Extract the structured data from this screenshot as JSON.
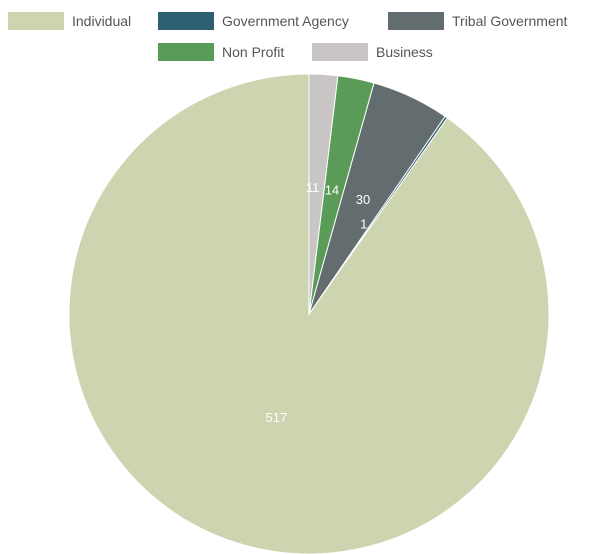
{
  "chart_data": {
    "type": "pie",
    "title": "",
    "legend_position": "top",
    "categories": [
      "Individual",
      "Government Agency",
      "Tribal Government",
      "Non Profit",
      "Business"
    ],
    "values": [
      517,
      1,
      30,
      14,
      11
    ],
    "colors": [
      "#cdd5b0",
      "#2f5f73",
      "#636c6f",
      "#5a9c57",
      "#c9c5c5"
    ],
    "data_labels": [
      "517",
      "1",
      "30",
      "14",
      "11"
    ]
  }
}
